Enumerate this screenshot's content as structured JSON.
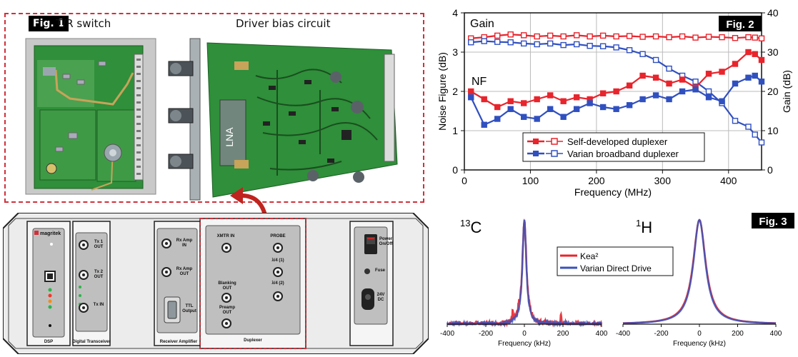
{
  "fig1": {
    "tag": "Fig. 1",
    "tr_switch_label": "T/R switch",
    "driver_label": "Driver bias circuit",
    "lna_label": "LNA"
  },
  "chassis": {
    "brand": "magritek",
    "modules": {
      "dsp": "DSP",
      "digital_transceiver": "Digital Transceiver",
      "receiver_amplifier": "Receiver Amplifier",
      "duplexer": "Duplexer"
    },
    "ports": {
      "tx1_out": "Tx 1 OUT",
      "tx2_out": "Tx 2 OUT",
      "tx_in": "Tx IN",
      "rx_amp_in": "Rx Amp IN",
      "rx_amp_out": "Rx Amp OUT",
      "ttl_output": "TTL Output",
      "xmtr_in": "XMTR IN",
      "probe": "PROBE",
      "lambda4_1": "λ/4 (1)",
      "lambda4_2": "λ/4 (2)",
      "blanking_out": "Blanking OUT",
      "preamp_out": "Preamp OUT",
      "power": "Power On/Off",
      "fuse": "Fuse",
      "dc": "24V DC"
    }
  },
  "chart_data": [
    {
      "type": "line",
      "tag": "Fig. 2",
      "xlabel": "Frequency (MHz)",
      "ylabel_left": "Noise Figure (dB)",
      "ylabel_right": "Gain (dB)",
      "xlim": [
        0,
        450
      ],
      "ylim_left": [
        0,
        4
      ],
      "ylim_right": [
        0,
        40
      ],
      "xticks": [
        "0",
        "100",
        "200",
        "300",
        "400"
      ],
      "yticks_left": [
        "0",
        "1",
        "2",
        "3",
        "4"
      ],
      "yticks_right": [
        "0",
        "10",
        "20",
        "30",
        "40"
      ],
      "annotations": [
        "Gain",
        "NF"
      ],
      "legend": [
        "Self-developed duplexer",
        "Varian broadband duplexer"
      ],
      "x": [
        10,
        30,
        50,
        70,
        90,
        110,
        130,
        150,
        170,
        190,
        210,
        230,
        250,
        270,
        290,
        310,
        330,
        350,
        370,
        390,
        410,
        430,
        440,
        450
      ],
      "series": [
        {
          "name": "Self-developed duplexer",
          "metric": "Gain",
          "axis": "right",
          "color": "#e8242c",
          "values": [
            33.5,
            33.8,
            34.2,
            34.5,
            34.3,
            34.0,
            34.2,
            34.0,
            34.3,
            34.0,
            34.2,
            34.0,
            34.1,
            33.9,
            34.0,
            33.8,
            34.0,
            33.7,
            33.9,
            33.8,
            33.6,
            33.8,
            33.7,
            33.5
          ]
        },
        {
          "name": "Varian broadband duplexer",
          "metric": "Gain",
          "axis": "right",
          "color": "#3050c0",
          "values": [
            32.5,
            32.8,
            32.6,
            32.5,
            32.2,
            32.0,
            32.2,
            31.8,
            32.0,
            31.6,
            31.5,
            31.2,
            30.5,
            29.5,
            28.0,
            25.8,
            24.0,
            22.5,
            20.0,
            17.0,
            12.5,
            11.0,
            9.0,
            7.0
          ]
        },
        {
          "name": "Self-developed duplexer",
          "metric": "NF",
          "axis": "left",
          "color": "#e8242c",
          "values": [
            2.0,
            1.8,
            1.6,
            1.75,
            1.7,
            1.8,
            1.9,
            1.75,
            1.85,
            1.8,
            1.95,
            2.0,
            2.15,
            2.4,
            2.35,
            2.2,
            2.3,
            2.1,
            2.45,
            2.5,
            2.7,
            3.0,
            2.95,
            2.8
          ]
        },
        {
          "name": "Varian broadband duplexer",
          "metric": "NF",
          "axis": "left",
          "color": "#3050c0",
          "values": [
            1.85,
            1.15,
            1.3,
            1.55,
            1.35,
            1.3,
            1.55,
            1.35,
            1.55,
            1.7,
            1.6,
            1.55,
            1.65,
            1.8,
            1.9,
            1.8,
            2.0,
            2.05,
            1.85,
            1.75,
            2.2,
            2.35,
            2.4,
            2.25
          ]
        }
      ]
    },
    {
      "type": "line",
      "tag": "Fig. 3",
      "panel_label": "13C",
      "panel_label_sup": "13",
      "panel_label_base": "C",
      "xlabel": "Frequency (kHz)",
      "xlim": [
        -400,
        400
      ],
      "xticks": [
        "-400",
        "-200",
        "0",
        "200",
        "400"
      ],
      "legend": [
        "Kea²",
        "Varian Direct Drive"
      ],
      "series": [
        {
          "name": "Kea²",
          "color": "#e8242c",
          "center": 0,
          "width": 13,
          "noise": 0.05
        },
        {
          "name": "Varian Direct Drive",
          "color": "#3a52b8",
          "center": 0,
          "width": 12,
          "noise": 0.03
        }
      ]
    },
    {
      "type": "line",
      "panel_label": "1H",
      "panel_label_sup": "1",
      "panel_label_base": "H",
      "xlabel": "Frequency (kHz)",
      "xlim": [
        -400,
        400
      ],
      "xticks": [
        "-400",
        "-200",
        "0",
        "200",
        "400"
      ],
      "series": [
        {
          "name": "Kea²",
          "color": "#e8242c",
          "center": 0,
          "width": 40
        },
        {
          "name": "Varian Direct Drive",
          "color": "#3a52b8",
          "center": 0,
          "width": 38
        }
      ]
    }
  ],
  "colors": {
    "red": "#e8242c",
    "blue": "#3050c0",
    "pcb_green": "#2f8f3a",
    "dashed_border": "#d0303a"
  }
}
